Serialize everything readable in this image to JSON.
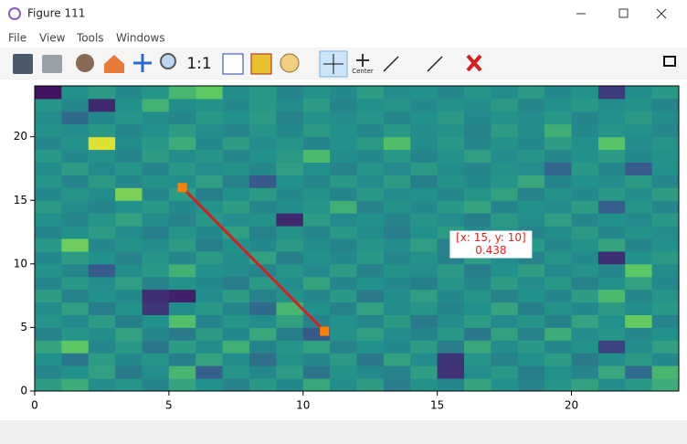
{
  "window": {
    "title": "Figure 111"
  },
  "menu": [
    "File",
    "View",
    "Tools",
    "Windows"
  ],
  "toolbar": {
    "zoom_label": "1:1",
    "center_label": "Center"
  },
  "chart_data": {
    "type": "heatmap",
    "xlim": [
      0,
      24
    ],
    "ylim": [
      0,
      24
    ],
    "xticks": [
      0,
      5,
      10,
      15,
      20
    ],
    "yticks": [
      0,
      5,
      10,
      15,
      20
    ],
    "colormap": "viridis",
    "vmin": 0,
    "vmax": 1,
    "values": [
      [
        0.55,
        0.62,
        0.48,
        0.52,
        0.45,
        0.58,
        0.5,
        0.44,
        0.53,
        0.47,
        0.6,
        0.49,
        0.55,
        0.42,
        0.51,
        0.46,
        0.58,
        0.5,
        0.44,
        0.52,
        0.57,
        0.48,
        0.53,
        0.62
      ],
      [
        0.45,
        0.5,
        0.57,
        0.41,
        0.49,
        0.66,
        0.3,
        0.52,
        0.46,
        0.55,
        0.38,
        0.51,
        0.47,
        0.44,
        0.56,
        0.15,
        0.49,
        0.53,
        0.42,
        0.5,
        0.45,
        0.6,
        0.35,
        0.66
      ],
      [
        0.5,
        0.4,
        0.55,
        0.47,
        0.52,
        0.43,
        0.58,
        0.49,
        0.36,
        0.51,
        0.46,
        0.54,
        0.4,
        0.57,
        0.48,
        0.16,
        0.52,
        0.44,
        0.5,
        0.55,
        0.41,
        0.49,
        0.54,
        0.47
      ],
      [
        0.58,
        0.74,
        0.46,
        0.53,
        0.4,
        0.55,
        0.49,
        0.63,
        0.45,
        0.52,
        0.57,
        0.44,
        0.5,
        0.47,
        0.55,
        0.42,
        0.6,
        0.48,
        0.53,
        0.46,
        0.51,
        0.2,
        0.49,
        0.56
      ],
      [
        0.44,
        0.52,
        0.49,
        0.57,
        0.46,
        0.41,
        0.54,
        0.47,
        0.6,
        0.43,
        0.28,
        0.51,
        0.56,
        0.48,
        0.45,
        0.53,
        0.4,
        0.57,
        0.44,
        0.62,
        0.48,
        0.52,
        0.46,
        0.5
      ],
      [
        0.52,
        0.47,
        0.55,
        0.43,
        0.5,
        0.7,
        0.45,
        0.52,
        0.48,
        0.57,
        0.44,
        0.5,
        0.46,
        0.54,
        0.41,
        0.49,
        0.55,
        0.47,
        0.52,
        0.44,
        0.58,
        0.5,
        0.76,
        0.45
      ],
      [
        0.48,
        0.56,
        0.42,
        0.51,
        0.17,
        0.49,
        0.53,
        0.46,
        0.35,
        0.66,
        0.5,
        0.44,
        0.57,
        0.48,
        0.52,
        0.45,
        0.5,
        0.58,
        0.43,
        0.51,
        0.47,
        0.54,
        0.49,
        0.53
      ],
      [
        0.55,
        0.44,
        0.5,
        0.47,
        0.14,
        0.1,
        0.48,
        0.55,
        0.44,
        0.51,
        0.46,
        0.53,
        0.41,
        0.49,
        0.56,
        0.47,
        0.52,
        0.44,
        0.5,
        0.45,
        0.55,
        0.68,
        0.46,
        0.52
      ],
      [
        0.46,
        0.53,
        0.48,
        0.56,
        0.44,
        0.51,
        0.47,
        0.42,
        0.54,
        0.49,
        0.58,
        0.45,
        0.5,
        0.47,
        0.43,
        0.52,
        0.46,
        0.55,
        0.48,
        0.53,
        0.44,
        0.5,
        0.57,
        0.47
      ],
      [
        0.51,
        0.45,
        0.29,
        0.49,
        0.53,
        0.64,
        0.5,
        0.48,
        0.45,
        0.52,
        0.47,
        0.55,
        0.44,
        0.51,
        0.48,
        0.54,
        0.42,
        0.5,
        0.56,
        0.47,
        0.51,
        0.46,
        0.74,
        0.49
      ],
      [
        0.47,
        0.55,
        0.5,
        0.44,
        0.52,
        0.46,
        0.54,
        0.49,
        0.57,
        0.43,
        0.5,
        0.47,
        0.53,
        0.46,
        0.51,
        0.438,
        0.55,
        0.48,
        0.44,
        0.52,
        0.47,
        0.14,
        0.5,
        0.54
      ],
      [
        0.53,
        0.78,
        0.46,
        0.51,
        0.48,
        0.55,
        0.43,
        0.5,
        0.47,
        0.54,
        0.49,
        0.45,
        0.52,
        0.48,
        0.56,
        0.44,
        0.5,
        0.47,
        0.53,
        0.46,
        0.51,
        0.58,
        0.45,
        0.5
      ],
      [
        0.45,
        0.5,
        0.55,
        0.48,
        0.43,
        0.52,
        0.47,
        0.56,
        0.44,
        0.51,
        0.46,
        0.53,
        0.49,
        0.42,
        0.5,
        0.55,
        0.47,
        0.52,
        0.45,
        0.49,
        0.54,
        0.46,
        0.51,
        0.48
      ],
      [
        0.5,
        0.46,
        0.52,
        0.57,
        0.49,
        0.44,
        0.53,
        0.48,
        0.51,
        0.12,
        0.55,
        0.47,
        0.5,
        0.45,
        0.52,
        0.48,
        0.43,
        0.54,
        0.49,
        0.56,
        0.46,
        0.5,
        0.47,
        0.53
      ],
      [
        0.54,
        0.48,
        0.45,
        0.5,
        0.53,
        0.47,
        0.51,
        0.55,
        0.46,
        0.49,
        0.52,
        0.63,
        0.44,
        0.51,
        0.47,
        0.53,
        0.58,
        0.45,
        0.5,
        0.48,
        0.55,
        0.3,
        0.52,
        0.46
      ],
      [
        0.47,
        0.52,
        0.49,
        0.8,
        0.46,
        0.55,
        0.43,
        0.5,
        0.54,
        0.47,
        0.51,
        0.45,
        0.53,
        0.48,
        0.5,
        0.46,
        0.52,
        0.57,
        0.44,
        0.51,
        0.47,
        0.53,
        0.49,
        0.55
      ],
      [
        0.52,
        0.45,
        0.54,
        0.47,
        0.51,
        0.49,
        0.56,
        0.44,
        0.28,
        0.5,
        0.46,
        0.53,
        0.48,
        0.55,
        0.43,
        0.51,
        0.47,
        0.52,
        0.6,
        0.45,
        0.5,
        0.48,
        0.54,
        0.46
      ],
      [
        0.49,
        0.55,
        0.47,
        0.52,
        0.45,
        0.53,
        0.48,
        0.51,
        0.46,
        0.56,
        0.5,
        0.44,
        0.52,
        0.47,
        0.54,
        0.49,
        0.45,
        0.51,
        0.48,
        0.33,
        0.53,
        0.46,
        0.29,
        0.5
      ],
      [
        0.53,
        0.47,
        0.51,
        0.45,
        0.55,
        0.48,
        0.52,
        0.46,
        0.5,
        0.54,
        0.68,
        0.49,
        0.47,
        0.53,
        0.45,
        0.51,
        0.56,
        0.48,
        0.52,
        0.46,
        0.5,
        0.54,
        0.47,
        0.51
      ],
      [
        0.46,
        0.51,
        0.95,
        0.49,
        0.53,
        0.62,
        0.47,
        0.55,
        0.48,
        0.52,
        0.45,
        0.5,
        0.54,
        0.7,
        0.49,
        0.53,
        0.46,
        0.51,
        0.47,
        0.55,
        0.5,
        0.72,
        0.48,
        0.52
      ],
      [
        0.51,
        0.48,
        0.53,
        0.46,
        0.5,
        0.55,
        0.49,
        0.45,
        0.52,
        0.47,
        0.54,
        0.5,
        0.46,
        0.53,
        0.48,
        0.51,
        0.44,
        0.55,
        0.49,
        0.63,
        0.47,
        0.52,
        0.5,
        0.46
      ],
      [
        0.48,
        0.35,
        0.47,
        0.52,
        0.49,
        0.46,
        0.53,
        0.5,
        0.55,
        0.44,
        0.51,
        0.48,
        0.52,
        0.46,
        0.5,
        0.54,
        0.47,
        0.51,
        0.48,
        0.53,
        0.45,
        0.5,
        0.54,
        0.49
      ],
      [
        0.52,
        0.46,
        0.12,
        0.5,
        0.64,
        0.49,
        0.51,
        0.47,
        0.53,
        0.48,
        0.55,
        0.45,
        0.5,
        0.52,
        0.47,
        0.51,
        0.49,
        0.54,
        0.46,
        0.5,
        0.53,
        0.48,
        0.51,
        0.45
      ],
      [
        0.05,
        0.5,
        0.54,
        0.47,
        0.52,
        0.66,
        0.75,
        0.49,
        0.53,
        0.45,
        0.51,
        0.47,
        0.55,
        0.48,
        0.5,
        0.46,
        0.52,
        0.49,
        0.54,
        0.47,
        0.51,
        0.18,
        0.49,
        0.53
      ]
    ],
    "line": {
      "color": "#d42020",
      "marker_color": "#ff7f00",
      "x": [
        5.5,
        10.8
      ],
      "y": [
        16,
        4.7
      ]
    },
    "annotation": {
      "position": "[x: 15, y: 10]",
      "value": 0.438,
      "x": 17,
      "y": 11.6,
      "color": "#e02020"
    }
  }
}
